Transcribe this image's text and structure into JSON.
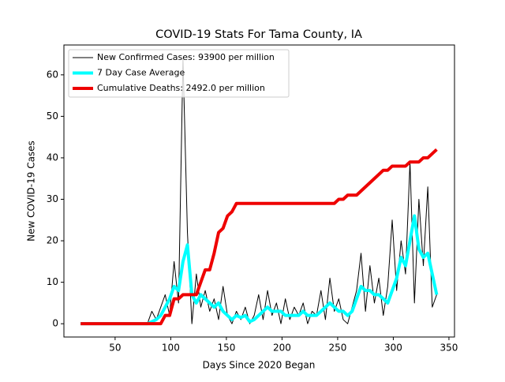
{
  "chart_data": {
    "type": "line",
    "title": "COVID-19 Stats For Tama County, IA",
    "xlabel": "Days Since 2020 Began",
    "ylabel": "New COVID-19 Cases",
    "x": [
      19,
      23,
      27,
      31,
      35,
      39,
      43,
      47,
      51,
      55,
      59,
      63,
      67,
      71,
      75,
      79,
      83,
      87,
      91,
      95,
      99,
      103,
      107,
      111,
      115,
      119,
      123,
      127,
      131,
      135,
      139,
      143,
      147,
      151,
      155,
      159,
      163,
      167,
      171,
      175,
      179,
      183,
      187,
      191,
      195,
      199,
      203,
      207,
      211,
      215,
      219,
      223,
      227,
      231,
      235,
      239,
      243,
      247,
      251,
      255,
      259,
      263,
      267,
      271,
      275,
      279,
      283,
      287,
      291,
      295,
      299,
      303,
      307,
      311,
      315,
      319,
      323,
      327,
      331,
      335,
      339
    ],
    "series": [
      {
        "name": "New Confirmed Cases: 93900 per million",
        "color": "#000000",
        "width": 1,
        "values": [
          0,
          0,
          0,
          0,
          0,
          0,
          0,
          0,
          0,
          0,
          0,
          0,
          0,
          0,
          0,
          0,
          3,
          1,
          4,
          7,
          2,
          15,
          5,
          64,
          22,
          0,
          12,
          4,
          8,
          3,
          6,
          1,
          9,
          2,
          0,
          3,
          1,
          4,
          0,
          2,
          7,
          1,
          8,
          2,
          5,
          0,
          6,
          1,
          4,
          2,
          5,
          0,
          3,
          2,
          8,
          1,
          11,
          3,
          6,
          1,
          0,
          4,
          8,
          17,
          3,
          14,
          5,
          11,
          2,
          9,
          25,
          8,
          20,
          12,
          39,
          5,
          30,
          14,
          33,
          4,
          7
        ]
      },
      {
        "name": "7 Day Case Average",
        "color": "#00ffff",
        "width": 4,
        "values": [
          0,
          0,
          0,
          0,
          0,
          0,
          0,
          0,
          0,
          0,
          0,
          0,
          0,
          0,
          0,
          0,
          0.5,
          1,
          2,
          4,
          6,
          9,
          8,
          15,
          19,
          7,
          5,
          7,
          6,
          5,
          4,
          5,
          3,
          2,
          1,
          2,
          1.5,
          2,
          0.5,
          1,
          2,
          3,
          4,
          3,
          3,
          3,
          2,
          2,
          2,
          2,
          3,
          2,
          2,
          2,
          3,
          4,
          5,
          4,
          3,
          3,
          2,
          3,
          6,
          9,
          8,
          8,
          7,
          7,
          6,
          5,
          8,
          11,
          16,
          14,
          20,
          26,
          18,
          16,
          17,
          12,
          7
        ]
      },
      {
        "name": "Cumulative Deaths: 2492.0 per million",
        "color": "#ee0000",
        "width": 4,
        "values": [
          0,
          0,
          0,
          0,
          0,
          0,
          0,
          0,
          0,
          0,
          0,
          0,
          0,
          0,
          0,
          0,
          0,
          0,
          0,
          2,
          2,
          6,
          6,
          7,
          7,
          7,
          7,
          10,
          13,
          13,
          17,
          22,
          23,
          26,
          27,
          29,
          29,
          29,
          29,
          29,
          29,
          29,
          29,
          29,
          29,
          29,
          29,
          29,
          29,
          29,
          29,
          29,
          29,
          29,
          29,
          29,
          29,
          29,
          30,
          30,
          31,
          31,
          31,
          32,
          33,
          34,
          35,
          36,
          37,
          37,
          38,
          38,
          38,
          38,
          39,
          39,
          39,
          40,
          40,
          41,
          42
        ]
      }
    ],
    "xlim": [
      4,
      355
    ],
    "ylim": [
      -3.2,
      67.2
    ],
    "xticks": [
      50,
      100,
      150,
      200,
      250,
      300,
      350
    ],
    "yticks": [
      0,
      10,
      20,
      30,
      40,
      50,
      60
    ],
    "legend": "upper left"
  }
}
